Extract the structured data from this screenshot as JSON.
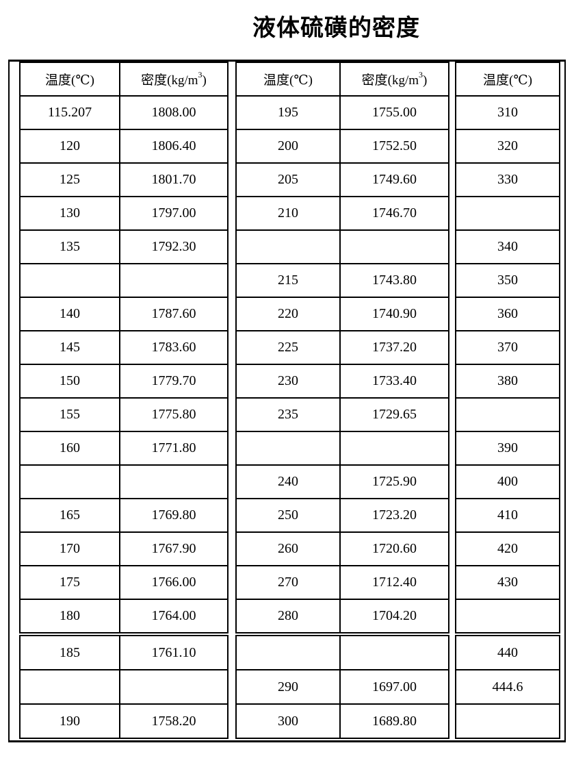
{
  "page": {
    "title": "液体硫磺的密度"
  },
  "table": {
    "header_temp_label": "温度(℃)",
    "header_density_base": "密度(kg/m",
    "header_density_sup": "3",
    "header_density_close": ")",
    "column_types": [
      "temp",
      "density",
      "temp",
      "density",
      "temp"
    ],
    "groups": [
      [
        0,
        1
      ],
      [
        2,
        3
      ],
      [
        4
      ]
    ],
    "break_after_row": 16,
    "rows": [
      [
        "115.207",
        "1808.00",
        "195",
        "1755.00",
        "310"
      ],
      [
        "120",
        "1806.40",
        "200",
        "1752.50",
        "320"
      ],
      [
        "125",
        "1801.70",
        "205",
        "1749.60",
        "330"
      ],
      [
        "130",
        "1797.00",
        "210",
        "1746.70",
        ""
      ],
      [
        "135",
        "1792.30",
        "",
        "",
        "340"
      ],
      [
        "",
        "",
        "215",
        "1743.80",
        "350"
      ],
      [
        "140",
        "1787.60",
        "220",
        "1740.90",
        "360"
      ],
      [
        "145",
        "1783.60",
        "225",
        "1737.20",
        "370"
      ],
      [
        "150",
        "1779.70",
        "230",
        "1733.40",
        "380"
      ],
      [
        "155",
        "1775.80",
        "235",
        "1729.65",
        ""
      ],
      [
        "160",
        "1771.80",
        "",
        "",
        "390"
      ],
      [
        "",
        "",
        "240",
        "1725.90",
        "400"
      ],
      [
        "165",
        "1769.80",
        "250",
        "1723.20",
        "410"
      ],
      [
        "170",
        "1767.90",
        "260",
        "1720.60",
        "420"
      ],
      [
        "175",
        "1766.00",
        "270",
        "1712.40",
        "430"
      ],
      [
        "180",
        "1764.00",
        "280",
        "1704.20",
        ""
      ],
      [
        "185",
        "1761.10",
        "",
        "",
        "440"
      ],
      [
        "",
        "",
        "290",
        "1697.00",
        "444.6"
      ],
      [
        "190",
        "1758.20",
        "300",
        "1689.80",
        ""
      ]
    ]
  }
}
